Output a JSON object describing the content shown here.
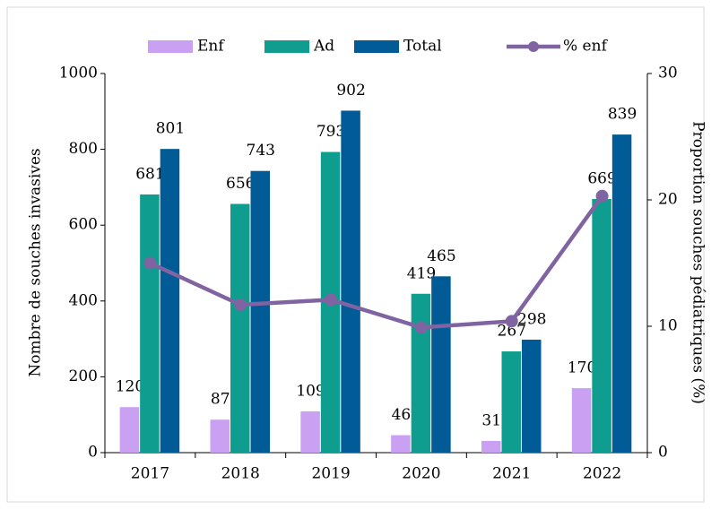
{
  "chart_data": {
    "type": "bar-line",
    "categories": [
      "2017",
      "2018",
      "2019",
      "2020",
      "2021",
      "2022"
    ],
    "series": [
      {
        "name": "Enf",
        "color": "#c9a0f2",
        "type": "bar",
        "values": [
          120,
          87,
          109,
          46,
          31,
          170
        ]
      },
      {
        "name": "Ad",
        "color": "#0f9d8f",
        "type": "bar",
        "values": [
          681,
          656,
          793,
          419,
          267,
          669
        ]
      },
      {
        "name": "Total",
        "color": "#005b96",
        "type": "bar",
        "values": [
          801,
          743,
          902,
          465,
          298,
          839
        ]
      },
      {
        "name": "% enf",
        "color": "#8064a2",
        "type": "line",
        "axis": "y2",
        "values": [
          15.0,
          11.7,
          12.1,
          9.9,
          10.4,
          20.3
        ]
      }
    ],
    "ylabel": "Nombre de souches invasives",
    "y2label": "Proportion souches pédiatriques (%)",
    "ylim": [
      0,
      1000
    ],
    "yticks": [
      0,
      200,
      400,
      600,
      800,
      1000
    ],
    "y2lim": [
      0,
      30
    ],
    "y2ticks": [
      0,
      10,
      20,
      30
    ],
    "legend": "top"
  }
}
